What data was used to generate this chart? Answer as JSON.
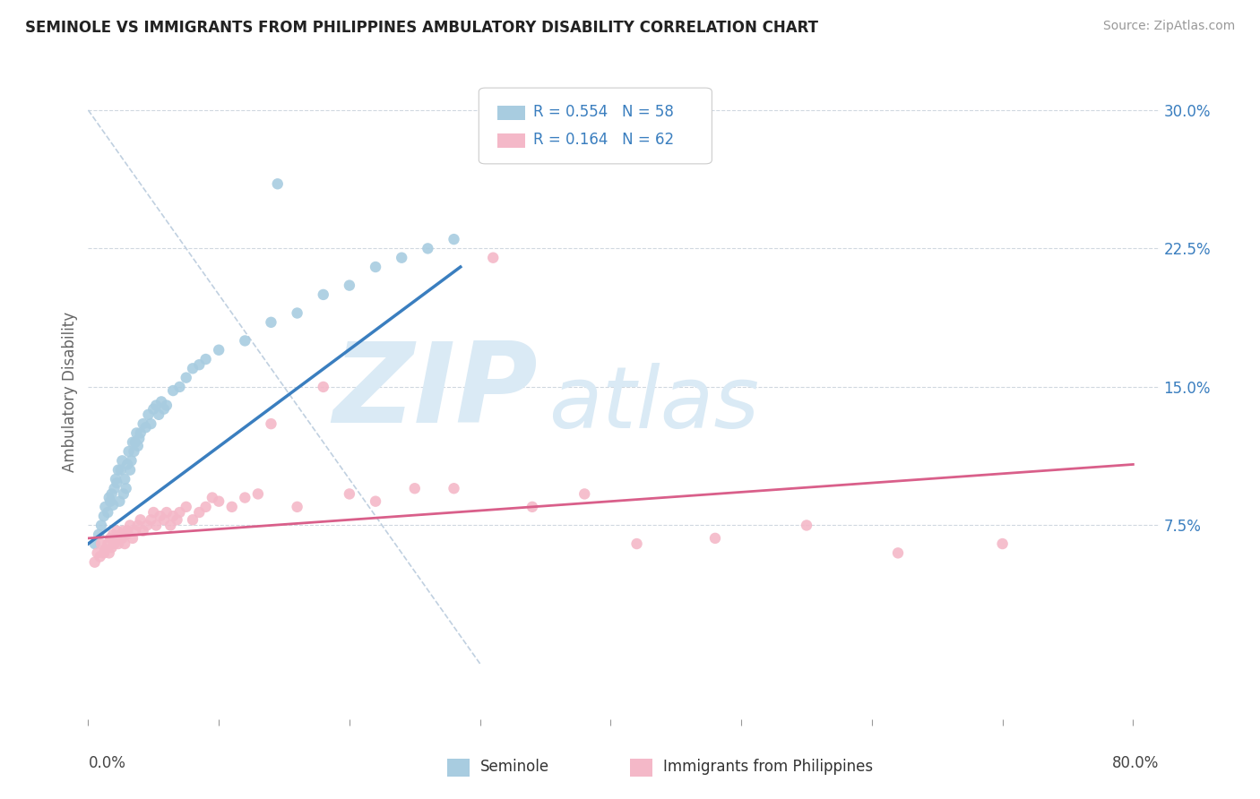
{
  "title": "SEMINOLE VS IMMIGRANTS FROM PHILIPPINES AMBULATORY DISABILITY CORRELATION CHART",
  "source": "Source: ZipAtlas.com",
  "ylabel": "Ambulatory Disability",
  "legend_blue_r": "R = 0.554",
  "legend_blue_n": "N = 58",
  "legend_pink_r": "R = 0.164",
  "legend_pink_n": "N = 62",
  "legend_label_blue": "Seminole",
  "legend_label_pink": "Immigrants from Philippines",
  "ytick_vals": [
    0.075,
    0.15,
    0.225,
    0.3
  ],
  "ytick_labels": [
    "7.5%",
    "15.0%",
    "22.5%",
    "30.0%"
  ],
  "xtick_vals": [
    0.0,
    0.1,
    0.2,
    0.3,
    0.4,
    0.5,
    0.6,
    0.7,
    0.8
  ],
  "xlim": [
    0.0,
    0.82
  ],
  "ylim": [
    -0.03,
    0.325
  ],
  "blue_scatter_x": [
    0.005,
    0.008,
    0.01,
    0.012,
    0.013,
    0.015,
    0.016,
    0.017,
    0.018,
    0.019,
    0.02,
    0.021,
    0.022,
    0.023,
    0.024,
    0.025,
    0.026,
    0.027,
    0.028,
    0.029,
    0.03,
    0.031,
    0.032,
    0.033,
    0.034,
    0.035,
    0.036,
    0.037,
    0.038,
    0.039,
    0.04,
    0.042,
    0.044,
    0.046,
    0.048,
    0.05,
    0.052,
    0.054,
    0.056,
    0.058,
    0.06,
    0.065,
    0.07,
    0.075,
    0.08,
    0.085,
    0.09,
    0.1,
    0.12,
    0.14,
    0.16,
    0.18,
    0.2,
    0.22,
    0.24,
    0.26,
    0.28,
    0.145
  ],
  "blue_scatter_y": [
    0.065,
    0.07,
    0.075,
    0.08,
    0.085,
    0.082,
    0.09,
    0.088,
    0.092,
    0.086,
    0.095,
    0.1,
    0.098,
    0.105,
    0.088,
    0.105,
    0.11,
    0.092,
    0.1,
    0.095,
    0.108,
    0.115,
    0.105,
    0.11,
    0.12,
    0.115,
    0.12,
    0.125,
    0.118,
    0.122,
    0.125,
    0.13,
    0.128,
    0.135,
    0.13,
    0.138,
    0.14,
    0.135,
    0.142,
    0.138,
    0.14,
    0.148,
    0.15,
    0.155,
    0.16,
    0.162,
    0.165,
    0.17,
    0.175,
    0.185,
    0.19,
    0.2,
    0.205,
    0.215,
    0.22,
    0.225,
    0.23,
    0.26
  ],
  "pink_scatter_x": [
    0.005,
    0.007,
    0.009,
    0.01,
    0.012,
    0.013,
    0.015,
    0.016,
    0.017,
    0.018,
    0.019,
    0.02,
    0.021,
    0.022,
    0.023,
    0.025,
    0.026,
    0.027,
    0.028,
    0.029,
    0.03,
    0.032,
    0.034,
    0.036,
    0.038,
    0.04,
    0.042,
    0.045,
    0.048,
    0.05,
    0.052,
    0.055,
    0.058,
    0.06,
    0.063,
    0.065,
    0.068,
    0.07,
    0.075,
    0.08,
    0.085,
    0.09,
    0.095,
    0.1,
    0.11,
    0.12,
    0.13,
    0.14,
    0.16,
    0.18,
    0.2,
    0.22,
    0.25,
    0.28,
    0.31,
    0.34,
    0.38,
    0.42,
    0.48,
    0.55,
    0.62,
    0.7
  ],
  "pink_scatter_y": [
    0.055,
    0.06,
    0.058,
    0.065,
    0.06,
    0.062,
    0.065,
    0.06,
    0.068,
    0.063,
    0.07,
    0.065,
    0.068,
    0.072,
    0.065,
    0.07,
    0.068,
    0.072,
    0.065,
    0.07,
    0.072,
    0.075,
    0.068,
    0.072,
    0.075,
    0.078,
    0.072,
    0.075,
    0.078,
    0.082,
    0.075,
    0.08,
    0.078,
    0.082,
    0.075,
    0.08,
    0.078,
    0.082,
    0.085,
    0.078,
    0.082,
    0.085,
    0.09,
    0.088,
    0.085,
    0.09,
    0.092,
    0.13,
    0.085,
    0.15,
    0.092,
    0.088,
    0.095,
    0.095,
    0.22,
    0.085,
    0.092,
    0.065,
    0.068,
    0.075,
    0.06,
    0.065
  ],
  "blue_line_x": [
    0.0,
    0.285
  ],
  "blue_line_y": [
    0.065,
    0.215
  ],
  "pink_line_x": [
    0.0,
    0.8
  ],
  "pink_line_y": [
    0.068,
    0.108
  ],
  "diag_line_x": [
    0.0,
    0.3
  ],
  "diag_line_y": [
    0.3,
    0.0
  ],
  "blue_color": "#a8cce0",
  "pink_color": "#f4b8c8",
  "blue_line_color": "#3a7ebf",
  "pink_line_color": "#d95f8a",
  "diag_line_color": "#c0d0e0",
  "watermark_zip": "ZIP",
  "watermark_atlas": "atlas",
  "watermark_color": "#daeaf5",
  "background_color": "#ffffff"
}
